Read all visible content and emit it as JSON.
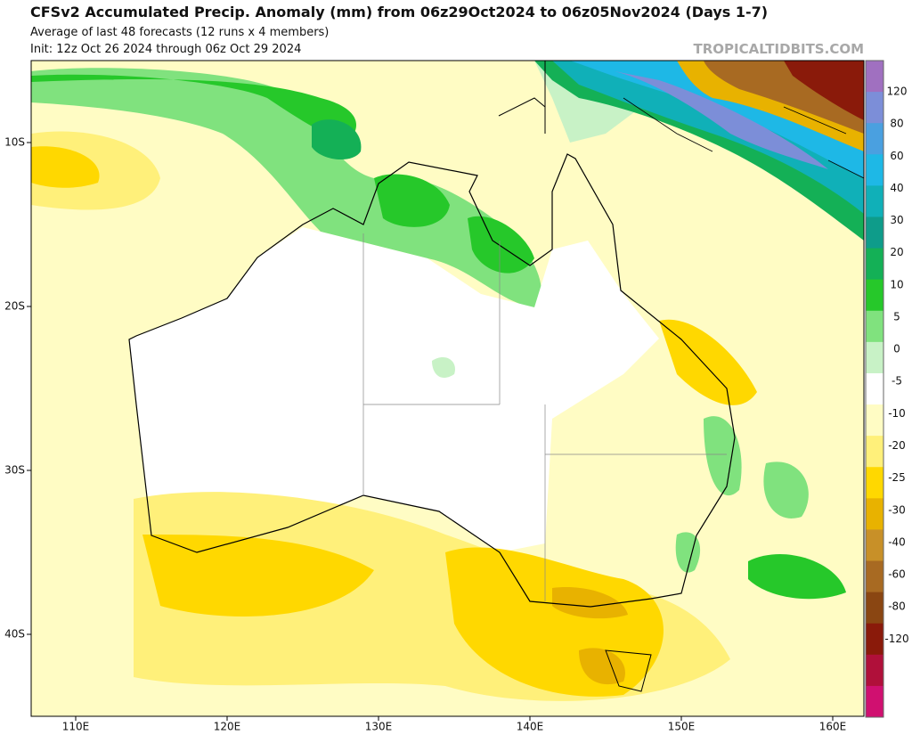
{
  "header": {
    "title": "CFSv2 Accumulated Precip. Anomaly (mm) from 06z29Oct2024 to 06z05Nov2024 (Days 1-7)",
    "subtitle": "Average of last 48 forecasts (12 runs x 4 members)",
    "init": "Init: 12z Oct 26 2024 through 06z Oct 29 2024",
    "watermark": "TROPICALTIDBITS.COM"
  },
  "map": {
    "lat_labels": [
      "10S",
      "20S",
      "30S",
      "40S"
    ],
    "lon_labels": [
      "110E",
      "120E",
      "130E",
      "140E",
      "150E",
      "160E"
    ]
  },
  "colorbar": {
    "labels": [
      120,
      80,
      60,
      40,
      30,
      20,
      10,
      5,
      0,
      -5,
      -10,
      -20,
      -25,
      -30,
      -40,
      -60,
      -80,
      -120
    ],
    "colors": [
      "#a070c0",
      "#7c8ed8",
      "#4aa0e0",
      "#1eb8e6",
      "#10b0b8",
      "#0e9c8a",
      "#14b056",
      "#26c82a",
      "#80e27e",
      "#c8f2c6",
      "#ffffff",
      "#fffcc4",
      "#fff07a",
      "#ffd800",
      "#e8b200",
      "#c89028",
      "#a86a22",
      "#8a4612",
      "#8a1a0a",
      "#b0103a",
      "#d01070"
    ]
  }
}
